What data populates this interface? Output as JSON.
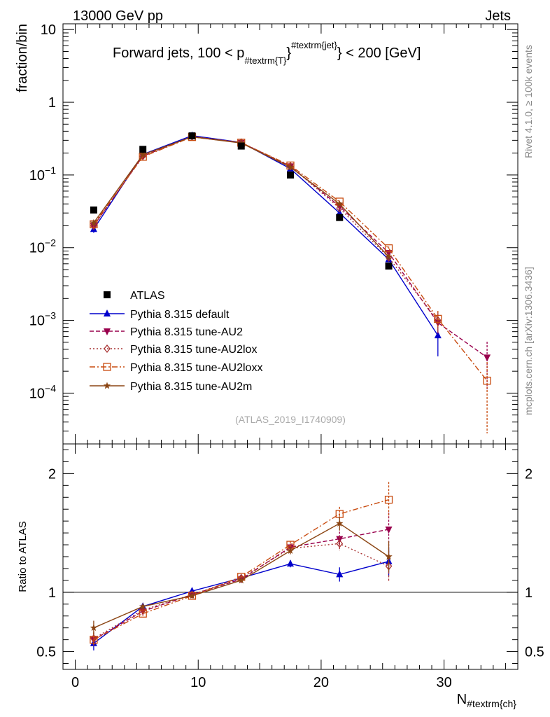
{
  "header": {
    "left": "13000 GeV pp",
    "right": "Jets"
  },
  "side_labels": {
    "rivet": "Rivet 4.1.0, ≥ 100k events",
    "mcplots": "mcplots.cern.ch [arXiv:1306.3436]"
  },
  "watermark": "(ATLAS_2019_I1740909)",
  "chart_data": {
    "type": "line",
    "title_main": "Forward jets, 100 < p",
    "title_sub": "#textrm{T}",
    "title_sup": "#textrm{jet}",
    "title_tail": "< 200 [GeV]",
    "ylabel": "fraction/bin",
    "ratio_ylabel": "Ratio to ATLAS",
    "xlabel_main": "N",
    "xlabel_sub": "#textrm{ch}",
    "xlim": [
      -1,
      36
    ],
    "ylim": [
      2e-05,
      12
    ],
    "ratio_ylim": [
      0.35,
      2.25
    ],
    "x_ticks": [
      0,
      10,
      20,
      30
    ],
    "y_ticks": [
      {
        "value": 10,
        "base": "10",
        "exp": ""
      },
      {
        "value": 1,
        "base": "1",
        "exp": ""
      },
      {
        "value": 0.1,
        "base": "10",
        "exp": "−1"
      },
      {
        "value": 0.01,
        "base": "10",
        "exp": "−2"
      },
      {
        "value": 0.001,
        "base": "10",
        "exp": "−3"
      },
      {
        "value": 0.0001,
        "base": "10",
        "exp": "−4"
      }
    ],
    "ratio_ticks": [
      {
        "value": 0.5,
        "label": "0.5"
      },
      {
        "value": 1,
        "label": "1"
      },
      {
        "value": 2,
        "label": "2"
      }
    ],
    "data": {
      "name": "ATLAS",
      "color": "#000000",
      "x": [
        1.5,
        5.5,
        9.5,
        13.5,
        17.5,
        21.5,
        25.5
      ],
      "y": [
        0.033,
        0.225,
        0.345,
        0.25,
        0.1,
        0.026,
        0.0056
      ]
    },
    "series": [
      {
        "name": "Pythia 8.315 default",
        "color": "#0000cc",
        "dash": "",
        "marker": "triangle-up",
        "x": [
          1.5,
          5.5,
          9.5,
          13.5,
          17.5,
          21.5,
          25.5,
          29.5
        ],
        "y": [
          0.018,
          0.192,
          0.348,
          0.28,
          0.122,
          0.03,
          0.0069,
          0.00062
        ],
        "err": [
          0.002,
          0.004,
          0.004,
          0.004,
          0.003,
          0.001,
          0.0005,
          0.0003
        ],
        "ratio": [
          0.57,
          0.88,
          1.01,
          1.12,
          1.24,
          1.15,
          1.26
        ],
        "ratio_err": [
          0.06,
          0.02,
          0.01,
          0.01,
          0.03,
          0.06,
          0.12
        ]
      },
      {
        "name": "Pythia 8.315 tune-AU2",
        "color": "#99004d",
        "dash": "6,3",
        "marker": "triangle-down",
        "x": [
          1.5,
          5.5,
          9.5,
          13.5,
          17.5,
          21.5,
          25.5,
          29.5,
          33.5
        ],
        "y": [
          0.02,
          0.182,
          0.338,
          0.278,
          0.132,
          0.037,
          0.0085,
          0.00093,
          0.00031
        ],
        "err": [
          0.002,
          0.004,
          0.004,
          0.004,
          0.003,
          0.001,
          0.0006,
          0.0003,
          0.0002
        ],
        "ratio": [
          0.6,
          0.84,
          0.98,
          1.11,
          1.38,
          1.45,
          1.53
        ],
        "ratio_err": [
          0.06,
          0.02,
          0.01,
          0.01,
          0.03,
          0.06,
          0.14
        ]
      },
      {
        "name": "Pythia 8.315 tune-AU2lox",
        "color": "#a83232",
        "dash": "2,3",
        "marker": "diamond",
        "x": [
          1.5,
          5.5,
          9.5,
          13.5,
          17.5,
          21.5,
          25.5,
          29.5
        ],
        "y": [
          0.02,
          0.182,
          0.338,
          0.28,
          0.132,
          0.035,
          0.0073,
          0.001
        ],
        "err": [
          0.002,
          0.004,
          0.004,
          0.004,
          0.003,
          0.001,
          0.0005,
          0.0003
        ],
        "ratio": [
          0.61,
          0.85,
          0.98,
          1.12,
          1.37,
          1.41,
          1.22
        ],
        "ratio_err": [
          0.06,
          0.02,
          0.01,
          0.01,
          0.03,
          0.06,
          0.13
        ]
      },
      {
        "name": "Pythia 8.315 tune-AU2loxx",
        "color": "#c84b0f",
        "dash": "8,3,2,3",
        "marker": "square-open",
        "x": [
          1.5,
          5.5,
          9.5,
          13.5,
          17.5,
          21.5,
          25.5,
          29.5,
          33.5
        ],
        "y": [
          0.021,
          0.178,
          0.333,
          0.278,
          0.135,
          0.043,
          0.0098,
          0.00105,
          0.000148
        ],
        "err": [
          0.002,
          0.004,
          0.004,
          0.004,
          0.003,
          0.001,
          0.0006,
          0.0003,
          0.00012
        ],
        "ratio": [
          0.6,
          0.82,
          0.97,
          1.13,
          1.4,
          1.66,
          1.78
        ],
        "ratio_err": [
          0.06,
          0.02,
          0.01,
          0.01,
          0.03,
          0.06,
          0.15
        ]
      },
      {
        "name": "Pythia 8.315 tune-AU2m",
        "color": "#8b4513",
        "dash": "",
        "marker": "star",
        "x": [
          1.5,
          5.5,
          9.5,
          13.5,
          17.5,
          21.5,
          25.5
        ],
        "y": [
          0.022,
          0.19,
          0.335,
          0.275,
          0.128,
          0.04,
          0.0075
        ],
        "err": [
          0.002,
          0.004,
          0.004,
          0.004,
          0.003,
          0.001,
          0.0005
        ],
        "ratio": [
          0.7,
          0.88,
          0.97,
          1.1,
          1.35,
          1.58,
          1.3
        ],
        "ratio_err": [
          0.06,
          0.02,
          0.01,
          0.01,
          0.03,
          0.06,
          0.13
        ]
      }
    ]
  }
}
